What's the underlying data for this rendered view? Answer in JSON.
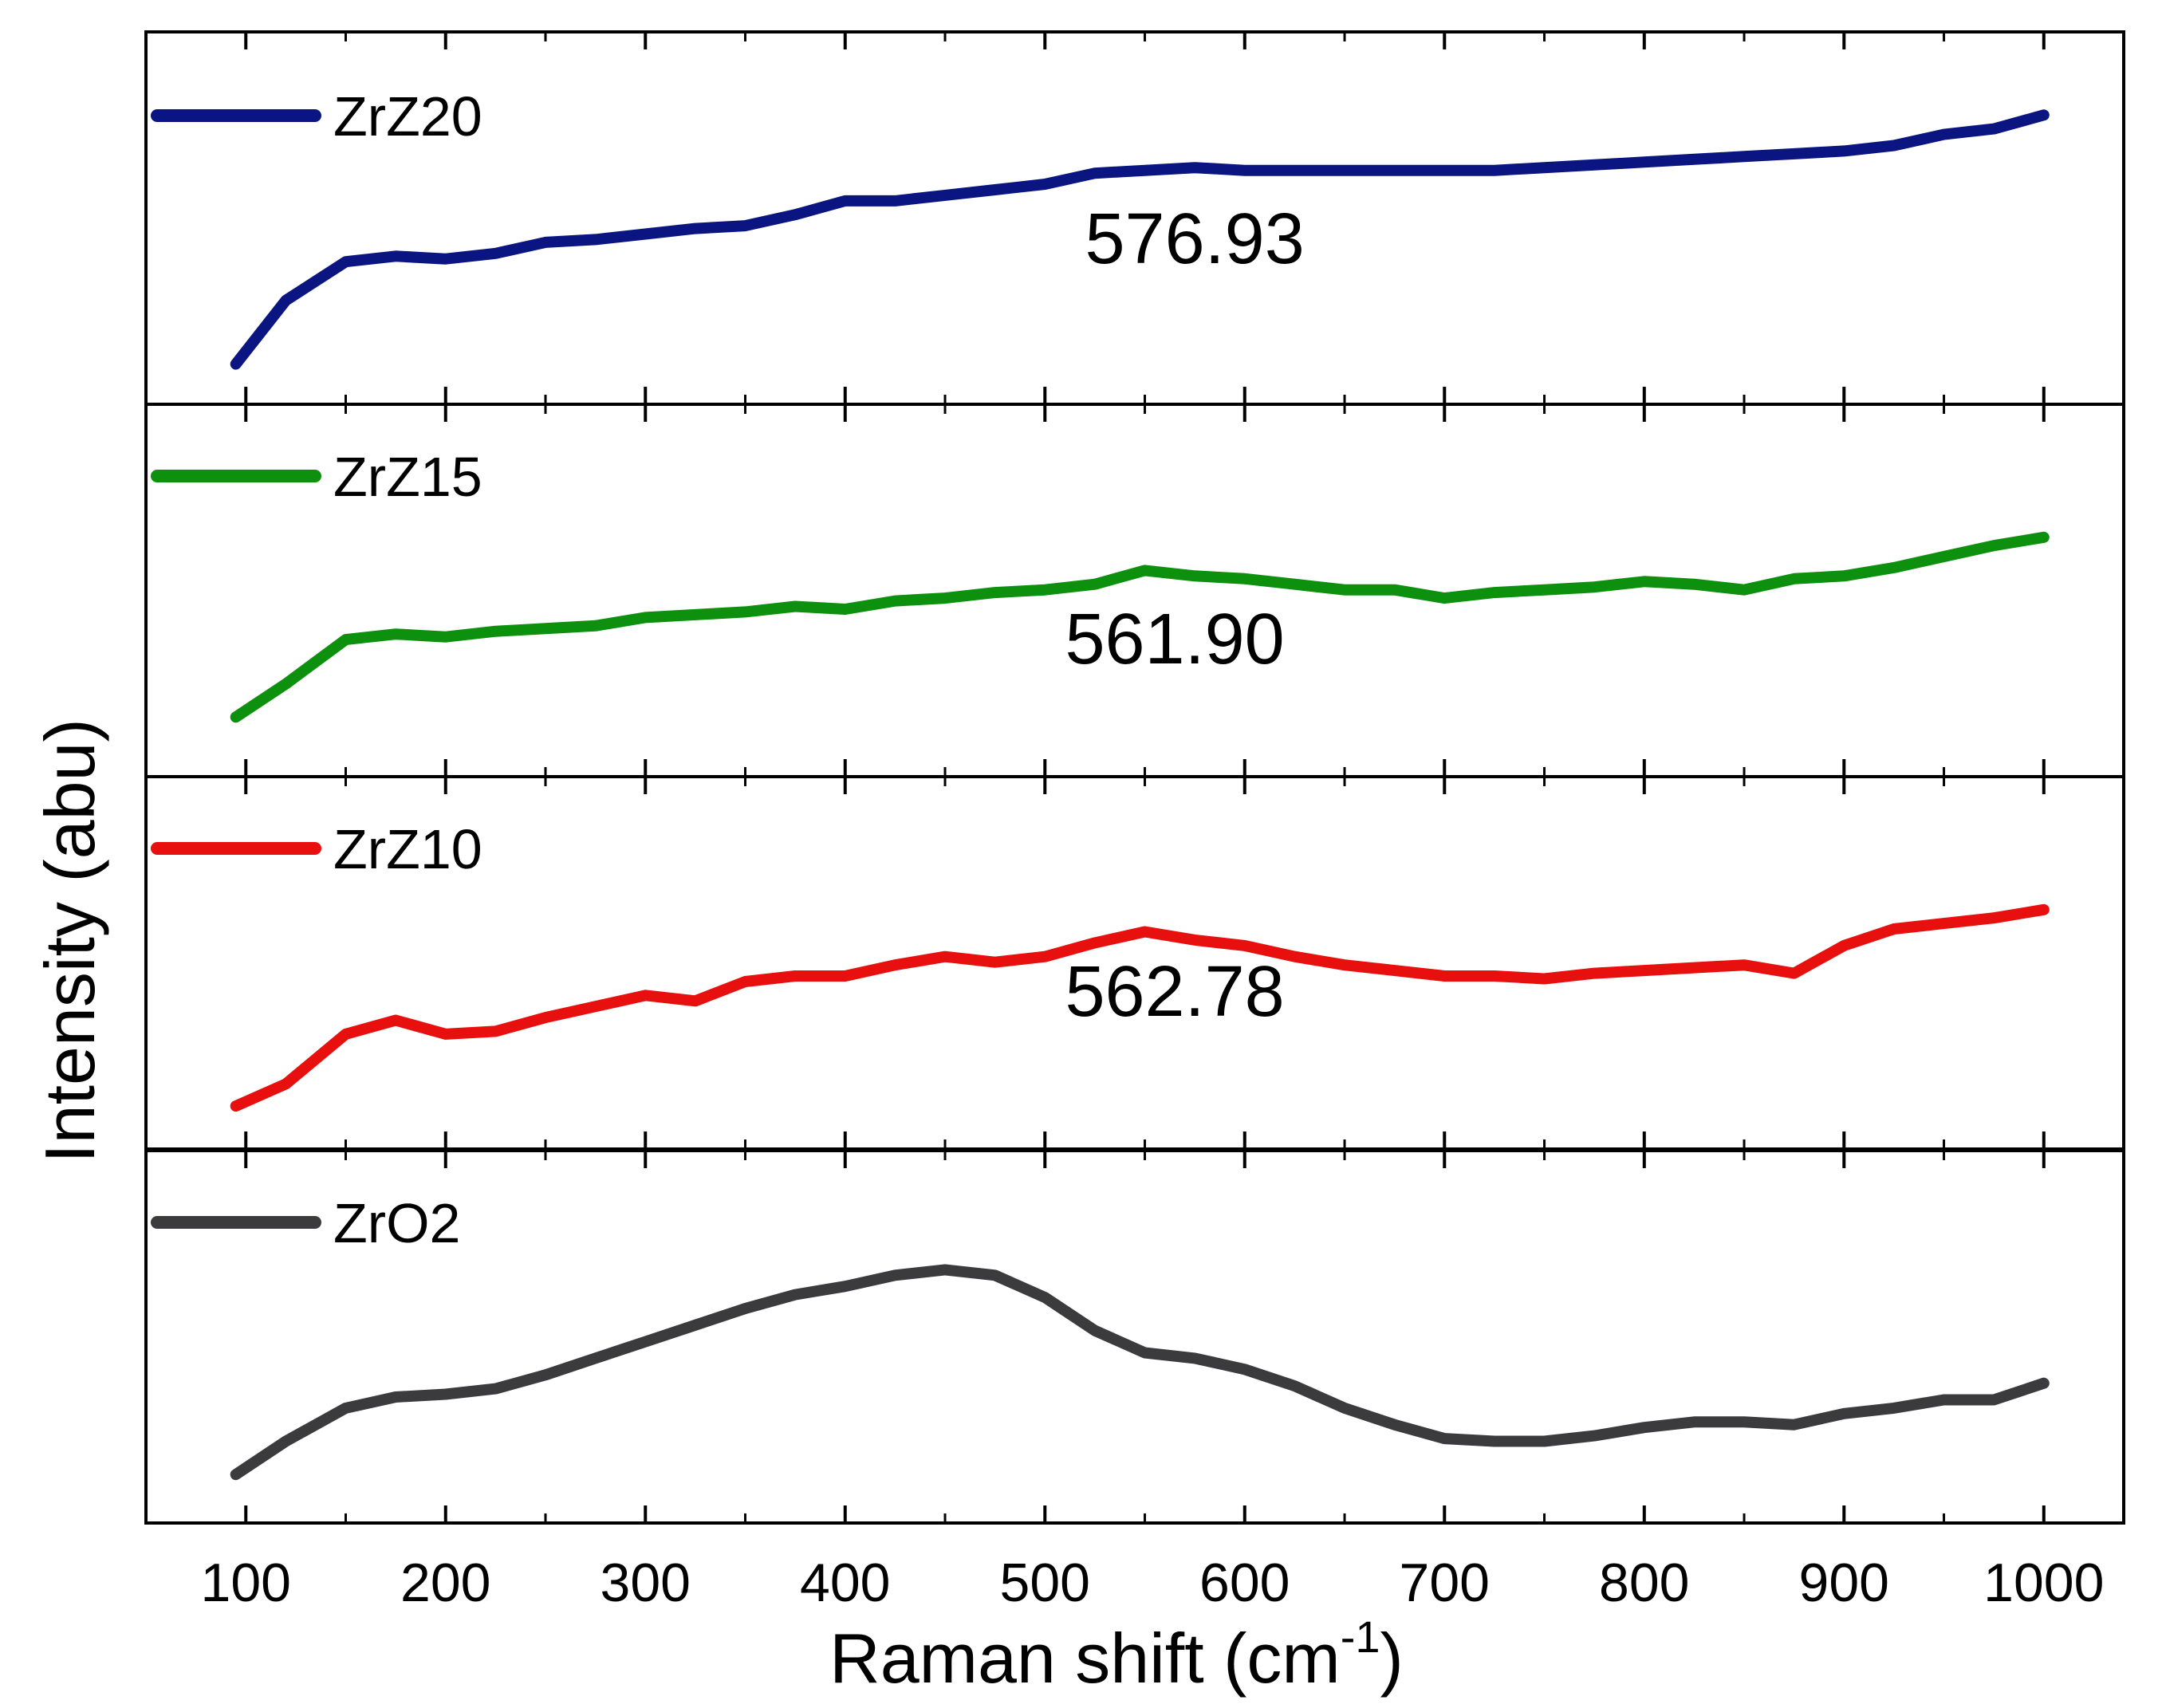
{
  "chart_data": {
    "type": "line",
    "layout": "stacked-panels",
    "xlabel": "Raman shift (cm",
    "xlabel_sup": "-1",
    "xlabel_close": ")",
    "ylabel": "Intensity (abu)",
    "xlim": [
      50,
      1040
    ],
    "xticks": [
      "100",
      "200",
      "300",
      "400",
      "500",
      "600",
      "700",
      "800",
      "900",
      "1000"
    ],
    "x": [
      95,
      120,
      150,
      175,
      200,
      225,
      250,
      275,
      300,
      325,
      350,
      375,
      400,
      425,
      450,
      475,
      500,
      525,
      550,
      575,
      600,
      625,
      650,
      675,
      700,
      725,
      750,
      775,
      800,
      825,
      850,
      875,
      900,
      925,
      950,
      975,
      1000
    ],
    "series": [
      {
        "name": "ZrZ20",
        "color": "#0a1581",
        "annotation": "576.93",
        "annotation_x": 575,
        "ylim": [
          0,
          100
        ],
        "values": [
          3,
          26,
          40,
          42,
          41,
          43,
          47,
          48,
          50,
          52,
          53,
          57,
          62,
          62,
          64,
          66,
          68,
          72,
          73,
          74,
          73,
          73,
          73,
          73,
          73,
          73,
          74,
          75,
          76,
          77,
          78,
          79,
          80,
          82,
          86,
          88,
          93
        ]
      },
      {
        "name": "ZrZ15",
        "color": "#0d900d",
        "annotation": "561.90",
        "annotation_x": 565,
        "ylim": [
          0,
          100
        ],
        "values": [
          10,
          22,
          38,
          40,
          39,
          41,
          42,
          43,
          46,
          47,
          48,
          50,
          49,
          52,
          53,
          55,
          56,
          58,
          63,
          61,
          60,
          58,
          56,
          56,
          53,
          55,
          56,
          57,
          59,
          58,
          56,
          60,
          61,
          64,
          68,
          72,
          75
        ]
      },
      {
        "name": "ZrZ10",
        "color": "#e80f0f",
        "annotation": "562.78",
        "annotation_x": 565,
        "ylim": [
          0,
          100
        ],
        "values": [
          4,
          12,
          30,
          35,
          30,
          31,
          36,
          40,
          44,
          42,
          49,
          51,
          51,
          55,
          58,
          56,
          58,
          63,
          67,
          64,
          62,
          58,
          55,
          53,
          51,
          51,
          50,
          52,
          53,
          54,
          55,
          52,
          62,
          68,
          70,
          72,
          75
        ]
      },
      {
        "name": "ZrO2",
        "color": "#3b3b3d",
        "annotation": "",
        "ylim": [
          0,
          100
        ],
        "values": [
          6,
          18,
          30,
          34,
          35,
          37,
          42,
          48,
          54,
          60,
          66,
          71,
          74,
          78,
          80,
          78,
          70,
          58,
          50,
          48,
          44,
          38,
          30,
          24,
          19,
          18,
          18,
          20,
          23,
          25,
          25,
          24,
          28,
          30,
          33,
          33,
          39
        ]
      }
    ]
  }
}
